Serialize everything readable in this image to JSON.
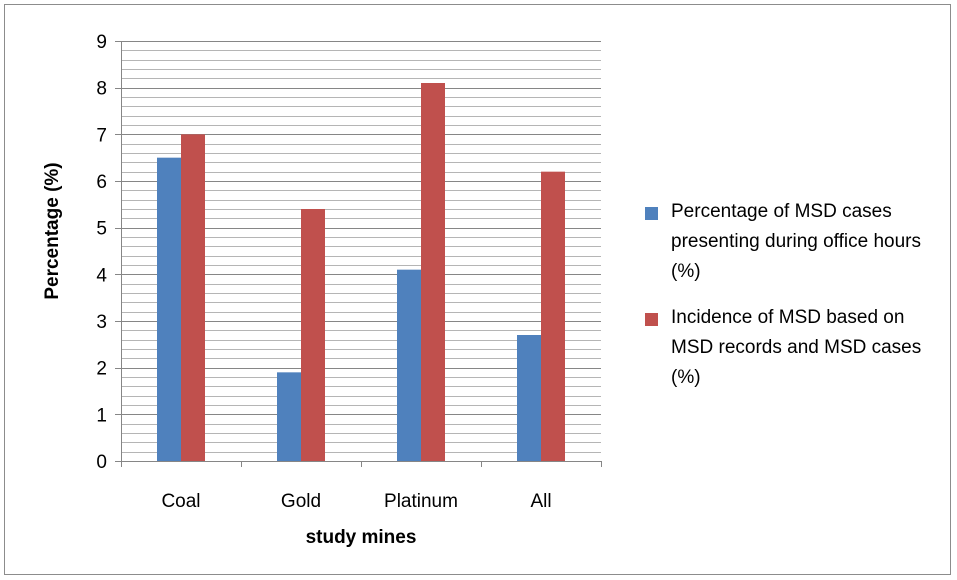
{
  "chart_data": {
    "type": "bar",
    "title": "",
    "xlabel": "study mines",
    "ylabel": "Percentage (%)",
    "categories": [
      "Coal",
      "Gold",
      "Platinum",
      "All"
    ],
    "ylim": [
      0,
      9
    ],
    "yticks": [
      0,
      1,
      2,
      3,
      4,
      5,
      6,
      7,
      8,
      9
    ],
    "minor_grid_step": 0.2,
    "grid": true,
    "legend_position": "right",
    "series": [
      {
        "name": "Percentage of MSD cases presenting during office hours (%)",
        "color": "#4f81bd",
        "values": [
          6.5,
          1.9,
          4.1,
          2.7
        ]
      },
      {
        "name": "Incidence of MSD based on MSD records and MSD cases (%)",
        "color": "#c0504d",
        "values": [
          7.0,
          5.4,
          8.1,
          6.2
        ]
      }
    ]
  }
}
